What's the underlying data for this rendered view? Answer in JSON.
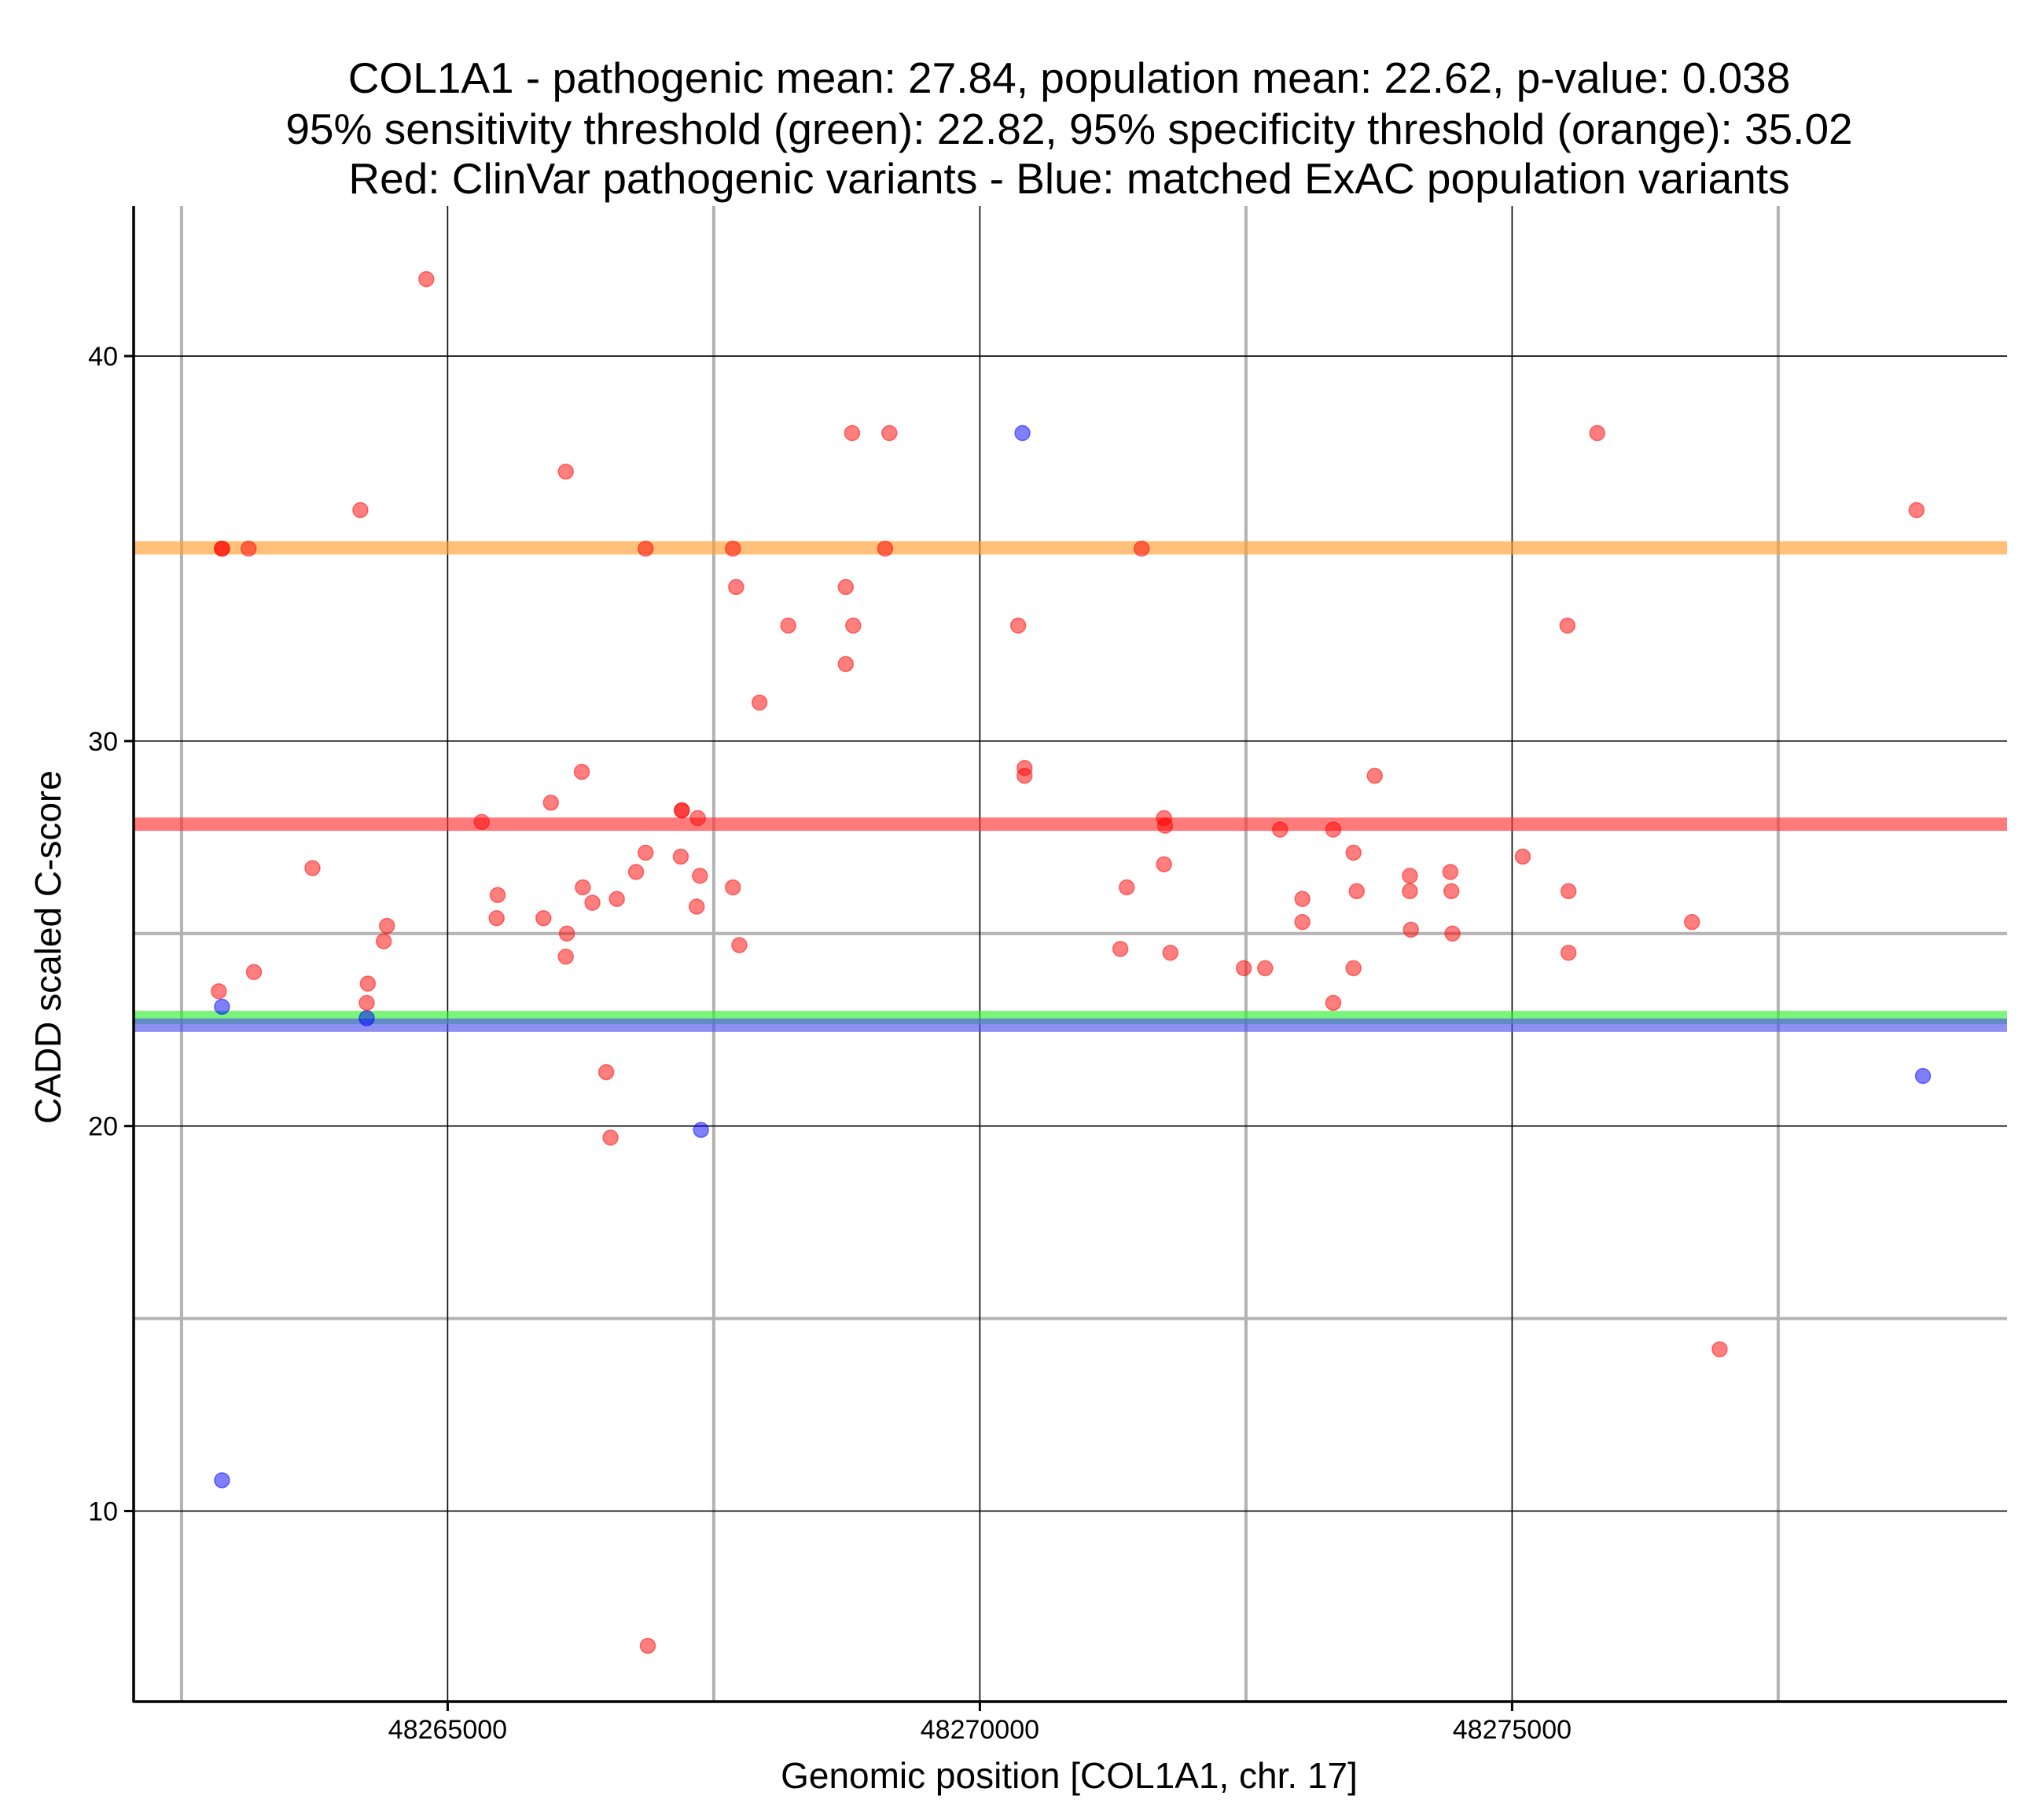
{
  "chart_data": {
    "type": "scatter",
    "title_lines": [
      "COL1A1 - pathogenic mean: 27.84, population mean: 22.62, p-value: 0.038",
      "95% sensitivity threshold (green): 22.82, 95% specificity threshold (orange): 35.02",
      "Red: ClinVar pathogenic variants - Blue: matched ExAC population variants"
    ],
    "xlabel": "Genomic position [COL1A1, chr. 17]",
    "ylabel": "CADD scaled C-score",
    "xlim": [
      48262050,
      48279650
    ],
    "ylim": [
      5.05,
      43.9
    ],
    "x_ticks": [
      48265000,
      48270000,
      48275000
    ],
    "x_tick_labels": [
      "48265000",
      "48270000",
      "48275000"
    ],
    "y_ticks": [
      10,
      20,
      30,
      40
    ],
    "y_tick_labels": [
      "10",
      "20",
      "30",
      "40"
    ],
    "x_minor_grid": [
      48262500,
      48267500,
      48272500,
      48277500
    ],
    "y_minor_grid": [
      15,
      25
    ],
    "reference_lines": [
      {
        "name": "specificity threshold",
        "value": 35.02,
        "color": "#ffa033"
      },
      {
        "name": "pathogenic mean",
        "value": 27.84,
        "color": "#ff3333"
      },
      {
        "name": "sensitivity threshold",
        "value": 22.82,
        "color": "#33ee33"
      },
      {
        "name": "population mean",
        "value": 22.62,
        "color": "#5555ee"
      }
    ],
    "series": [
      {
        "name": "ClinVar pathogenic variants",
        "color": "#ff0000",
        "points": [
          {
            "x": 48262880,
            "y": 35.0
          },
          {
            "x": 48263130,
            "y": 35.0
          },
          {
            "x": 48264180,
            "y": 36.0
          },
          {
            "x": 48264800,
            "y": 42.0
          },
          {
            "x": 48262850,
            "y": 23.5
          },
          {
            "x": 48263180,
            "y": 24.0
          },
          {
            "x": 48263730,
            "y": 26.7
          },
          {
            "x": 48264250,
            "y": 23.7
          },
          {
            "x": 48264240,
            "y": 23.2
          },
          {
            "x": 48264400,
            "y": 24.8
          },
          {
            "x": 48264430,
            "y": 25.2
          },
          {
            "x": 48265320,
            "y": 27.9
          },
          {
            "x": 48265470,
            "y": 26.0
          },
          {
            "x": 48265460,
            "y": 25.4
          },
          {
            "x": 48265900,
            "y": 25.4
          },
          {
            "x": 48265970,
            "y": 28.4
          },
          {
            "x": 48266110,
            "y": 37.0
          },
          {
            "x": 48266120,
            "y": 25.0
          },
          {
            "x": 48266110,
            "y": 24.4
          },
          {
            "x": 48266260,
            "y": 29.2
          },
          {
            "x": 48266270,
            "y": 26.2
          },
          {
            "x": 48266360,
            "y": 25.8
          },
          {
            "x": 48266590,
            "y": 25.9
          },
          {
            "x": 48266490,
            "y": 21.4
          },
          {
            "x": 48266530,
            "y": 19.7
          },
          {
            "x": 48266770,
            "y": 26.6
          },
          {
            "x": 48266860,
            "y": 27.1
          },
          {
            "x": 48266860,
            "y": 35.0
          },
          {
            "x": 48266880,
            "y": 6.5
          },
          {
            "x": 48267200,
            "y": 28.2
          },
          {
            "x": 48267190,
            "y": 27.0
          },
          {
            "x": 48267350,
            "y": 28.0
          },
          {
            "x": 48267340,
            "y": 25.7
          },
          {
            "x": 48267370,
            "y": 26.5
          },
          {
            "x": 48267680,
            "y": 35.0
          },
          {
            "x": 48267710,
            "y": 34.0
          },
          {
            "x": 48267680,
            "y": 26.2
          },
          {
            "x": 48267740,
            "y": 24.7
          },
          {
            "x": 48267930,
            "y": 31.0
          },
          {
            "x": 48268200,
            "y": 33.0
          },
          {
            "x": 48268740,
            "y": 34.0
          },
          {
            "x": 48268740,
            "y": 32.0
          },
          {
            "x": 48268800,
            "y": 38.0
          },
          {
            "x": 48268810,
            "y": 33.0
          },
          {
            "x": 48269150,
            "y": 38.0
          },
          {
            "x": 48269110,
            "y": 35.0
          },
          {
            "x": 48270360,
            "y": 33.0
          },
          {
            "x": 48270420,
            "y": 29.3
          },
          {
            "x": 48270420,
            "y": 29.1
          },
          {
            "x": 48271320,
            "y": 24.6
          },
          {
            "x": 48271380,
            "y": 26.2
          },
          {
            "x": 48271520,
            "y": 35.0
          },
          {
            "x": 48271730,
            "y": 28.0
          },
          {
            "x": 48271740,
            "y": 27.8
          },
          {
            "x": 48271730,
            "y": 26.8
          },
          {
            "x": 48271790,
            "y": 24.5
          },
          {
            "x": 48272480,
            "y": 24.1
          },
          {
            "x": 48272680,
            "y": 24.1
          },
          {
            "x": 48272820,
            "y": 27.7
          },
          {
            "x": 48273030,
            "y": 25.9
          },
          {
            "x": 48273030,
            "y": 25.3
          },
          {
            "x": 48273320,
            "y": 27.7
          },
          {
            "x": 48273320,
            "y": 23.2
          },
          {
            "x": 48273510,
            "y": 27.1
          },
          {
            "x": 48273510,
            "y": 24.1
          },
          {
            "x": 48273540,
            "y": 26.1
          },
          {
            "x": 48273710,
            "y": 29.1
          },
          {
            "x": 48274040,
            "y": 26.5
          },
          {
            "x": 48274040,
            "y": 26.1
          },
          {
            "x": 48274050,
            "y": 25.1
          },
          {
            "x": 48274420,
            "y": 26.6
          },
          {
            "x": 48274430,
            "y": 26.1
          },
          {
            "x": 48274440,
            "y": 25.0
          },
          {
            "x": 48275100,
            "y": 27.0
          },
          {
            "x": 48275520,
            "y": 33.0
          },
          {
            "x": 48275530,
            "y": 26.1
          },
          {
            "x": 48275530,
            "y": 24.5
          },
          {
            "x": 48275800,
            "y": 38.0
          },
          {
            "x": 48276690,
            "y": 25.3
          },
          {
            "x": 48276950,
            "y": 14.2
          },
          {
            "x": 48278800,
            "y": 36.0
          },
          {
            "x": 48262880,
            "y": 35.0
          },
          {
            "x": 48267200,
            "y": 28.2
          }
        ]
      },
      {
        "name": "matched ExAC population variants",
        "color": "#0000ff",
        "points": [
          {
            "x": 48262880,
            "y": 23.1
          },
          {
            "x": 48262880,
            "y": 10.8
          },
          {
            "x": 48264240,
            "y": 22.8
          },
          {
            "x": 48267380,
            "y": 19.9
          },
          {
            "x": 48270400,
            "y": 38.0
          },
          {
            "x": 48278860,
            "y": 21.3
          }
        ]
      }
    ]
  }
}
